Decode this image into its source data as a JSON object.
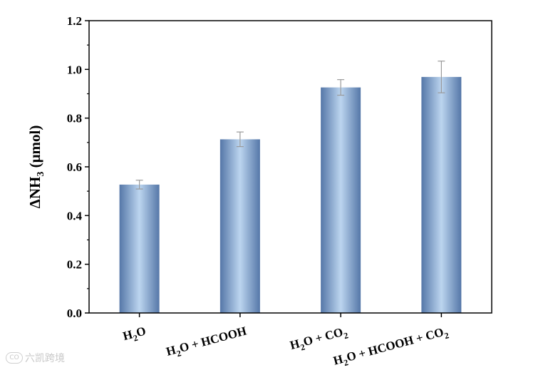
{
  "chart_data": {
    "type": "bar",
    "categories": [
      {
        "main": "H",
        "sub": "2",
        "rest": "O",
        "tail": "",
        "tail_sub": ""
      },
      {
        "main": "H",
        "sub": "2",
        "rest": "O + HCOOH",
        "tail": "",
        "tail_sub": ""
      },
      {
        "main": "H",
        "sub": "2",
        "rest": "O + CO",
        "tail": "",
        "tail_sub": "2"
      },
      {
        "main": "H",
        "sub": "2",
        "rest": "O + HCOOH + CO",
        "tail": "",
        "tail_sub": "2"
      }
    ],
    "values": [
      0.527,
      0.713,
      0.926,
      0.969
    ],
    "errors": [
      0.018,
      0.03,
      0.032,
      0.065
    ],
    "ylabel": {
      "prefix": "ΔNH",
      "sub": "3",
      "suffix": " (μmol)"
    },
    "ylim": [
      0.0,
      1.2
    ],
    "yticks": [
      "0.0",
      "0.2",
      "0.4",
      "0.6",
      "0.8",
      "1.0",
      "1.2"
    ],
    "grid": false,
    "colors": {
      "bar_edge": "#5a7fb0",
      "bar_center": "#b9d3ee",
      "error_bar": "#999999",
      "axis": "#000000"
    }
  },
  "watermark": {
    "logo": "CO",
    "text": "六凯跨境"
  }
}
